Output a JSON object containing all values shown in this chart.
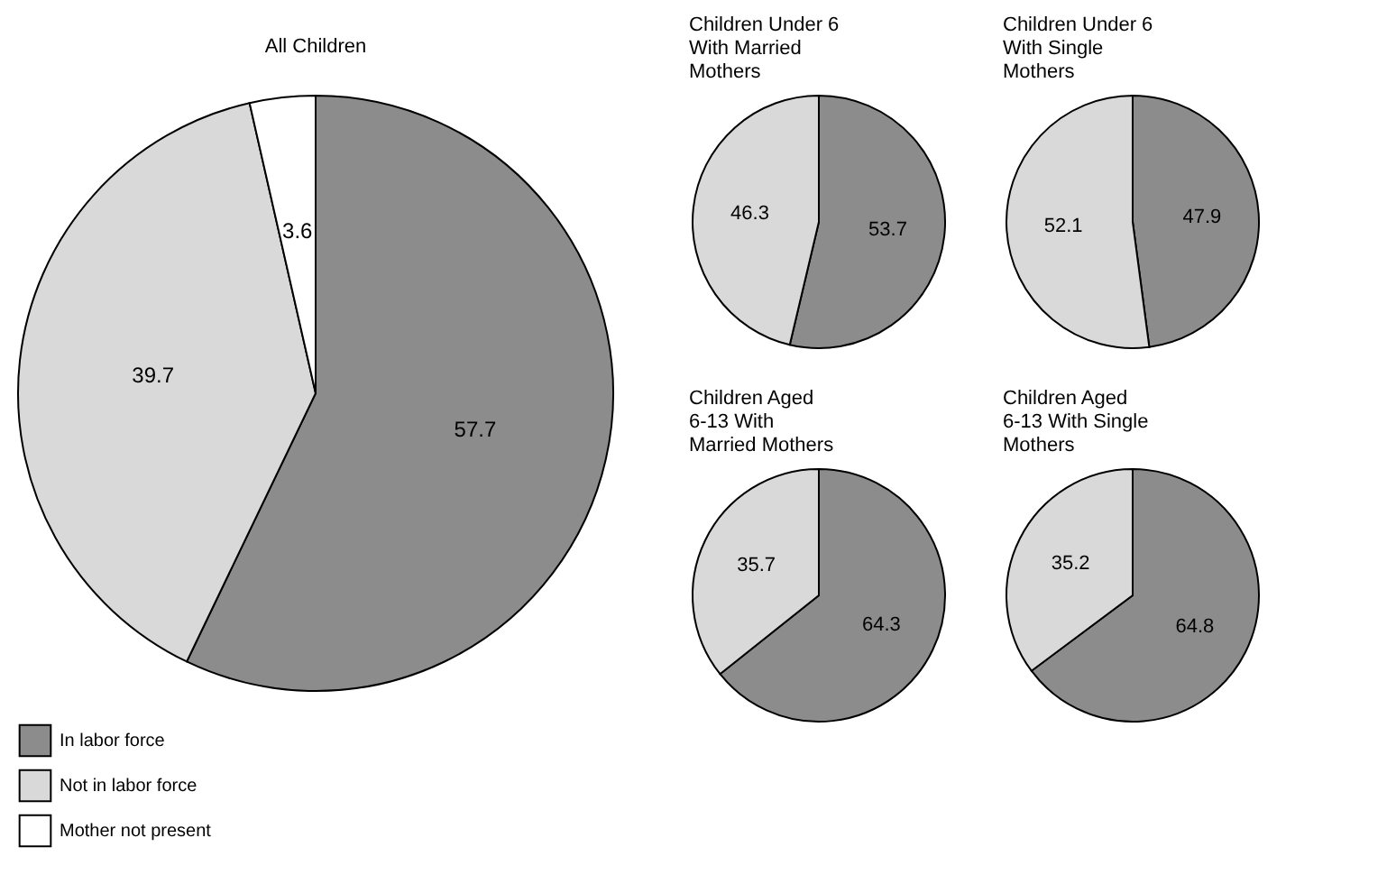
{
  "chart_data": [
    {
      "type": "pie",
      "title": "All Children",
      "categories": [
        "In labor force",
        "Not in labor force",
        "Mother not present"
      ],
      "values": [
        57.7,
        39.7,
        3.6
      ],
      "colors": [
        "#8c8c8c",
        "#d9d9d9",
        "#ffffff"
      ],
      "data_labels": true,
      "legend": "bottom left"
    },
    {
      "type": "pie",
      "title": "Children Under 6 With Married Mothers",
      "categories": [
        null,
        null
      ],
      "values": [
        53.7,
        46.3
      ],
      "colors": [
        "#8c8c8c",
        "#d9d9d9"
      ],
      "data_labels": true
    },
    {
      "type": "pie",
      "title": "Children Under 6 With Single Mothers",
      "categories": [
        null,
        null
      ],
      "values": [
        47.9,
        52.1
      ],
      "colors": [
        "#8c8c8c",
        "#d9d9d9"
      ],
      "data_labels": true
    },
    {
      "type": "pie",
      "title": "Children Aged 6-13 With Married Mothers",
      "categories": [
        null,
        null
      ],
      "values": [
        64.3,
        35.7
      ],
      "colors": [
        "#8c8c8c",
        "#d9d9d9"
      ],
      "data_labels": true
    },
    {
      "type": "pie",
      "title": "Children Aged 6-13 With Single Mothers",
      "categories": [
        null,
        null
      ],
      "values": [
        64.8,
        35.2
      ],
      "colors": [
        "#8c8c8c",
        "#d9d9d9"
      ],
      "data_labels": true
    }
  ]
}
